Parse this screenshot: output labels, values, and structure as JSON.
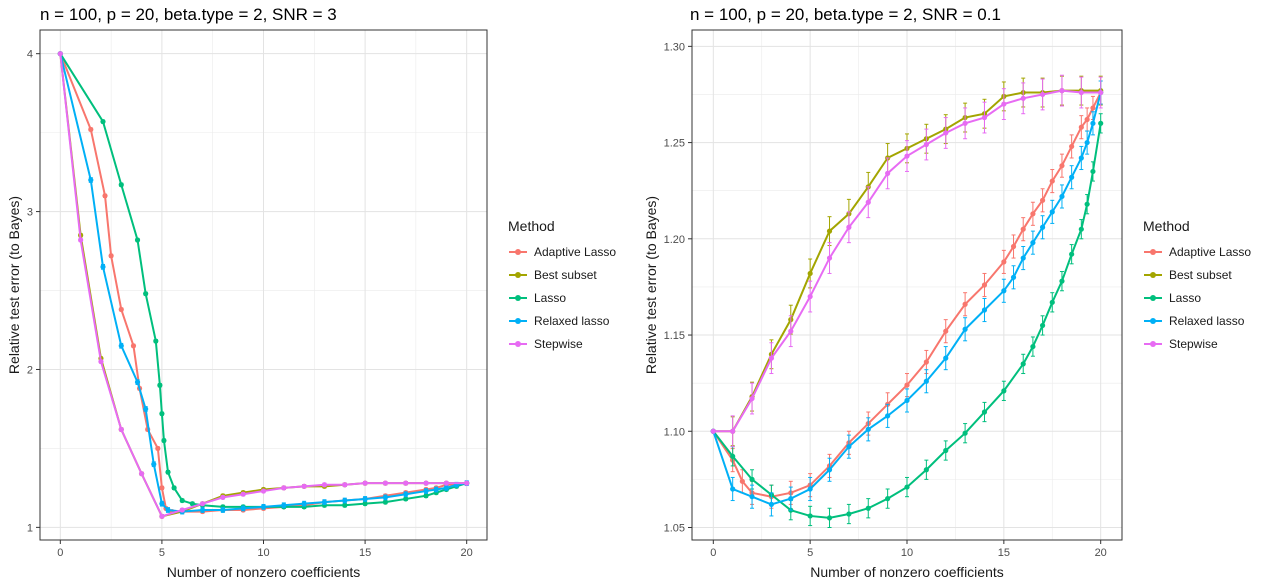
{
  "legend": {
    "title": "Method",
    "items": [
      {
        "label": "Adaptive Lasso",
        "color": "#F8766D"
      },
      {
        "label": "Best subset",
        "color": "#A3A500"
      },
      {
        "label": "Lasso",
        "color": "#00BF7D"
      },
      {
        "label": "Relaxed lasso",
        "color": "#00B0F6"
      },
      {
        "label": "Stepwise",
        "color": "#E76BF3"
      }
    ]
  },
  "chart_data": [
    {
      "type": "line",
      "title": "n = 100, p = 20, beta.type = 2, SNR = 3",
      "xlabel": "Number of nonzero coefficients",
      "ylabel": "Relative test error (to Bayes)",
      "xlim": [
        -1,
        21
      ],
      "ylim": [
        0.92,
        4.15
      ],
      "xticks": [
        0,
        5,
        10,
        15,
        20
      ],
      "xtick_labels": [
        "0",
        "5",
        "10",
        "15",
        "20"
      ],
      "yticks": [
        1,
        2,
        3,
        4
      ],
      "ytick_labels": [
        "1",
        "2",
        "3",
        "4"
      ],
      "grid": true,
      "series": [
        {
          "name": "Adaptive Lasso",
          "color": "#F8766D",
          "points": [
            [
              0,
              4
            ],
            [
              1.5,
              3.52
            ],
            [
              2.2,
              3.1
            ],
            [
              2.5,
              2.72
            ],
            [
              3,
              2.38
            ],
            [
              3.6,
              2.15
            ],
            [
              3.9,
              1.88
            ],
            [
              4.3,
              1.62
            ],
            [
              4.8,
              1.5
            ],
            [
              5,
              1.25
            ],
            [
              5.2,
              1.12
            ],
            [
              5.5,
              1.1
            ],
            [
              6,
              1.1
            ],
            [
              7,
              1.1
            ],
            [
              8,
              1.11
            ],
            [
              9,
              1.11
            ],
            [
              10,
              1.12
            ],
            [
              11,
              1.13
            ],
            [
              12,
              1.14
            ],
            [
              13,
              1.16
            ],
            [
              14,
              1.17
            ],
            [
              15,
              1.18
            ],
            [
              16,
              1.2
            ],
            [
              17,
              1.22
            ],
            [
              18,
              1.24
            ],
            [
              18.5,
              1.25
            ],
            [
              19,
              1.27
            ],
            [
              19.5,
              1.27
            ],
            [
              20,
              1.28
            ]
          ],
          "err": 0.02
        },
        {
          "name": "Best subset",
          "color": "#A3A500",
          "points": [
            [
              0,
              4
            ],
            [
              1,
              2.85
            ],
            [
              2,
              2.07
            ],
            [
              3,
              1.62
            ],
            [
              4,
              1.34
            ],
            [
              5,
              1.07
            ],
            [
              6,
              1.1
            ],
            [
              7,
              1.15
            ],
            [
              8,
              1.2
            ],
            [
              9,
              1.22
            ],
            [
              10,
              1.24
            ],
            [
              11,
              1.25
            ],
            [
              12,
              1.26
            ],
            [
              13,
              1.26
            ],
            [
              14,
              1.27
            ],
            [
              15,
              1.28
            ],
            [
              16,
              1.28
            ],
            [
              17,
              1.28
            ],
            [
              18,
              1.28
            ],
            [
              19,
              1.28
            ],
            [
              20,
              1.28
            ]
          ],
          "err": 0.02
        },
        {
          "name": "Lasso",
          "color": "#00BF7D",
          "points": [
            [
              0,
              4
            ],
            [
              2.1,
              3.57
            ],
            [
              3,
              3.17
            ],
            [
              3.8,
              2.82
            ],
            [
              4.2,
              2.48
            ],
            [
              4.7,
              2.18
            ],
            [
              4.9,
              1.9
            ],
            [
              5,
              1.72
            ],
            [
              5.1,
              1.55
            ],
            [
              5.3,
              1.35
            ],
            [
              5.6,
              1.25
            ],
            [
              6,
              1.17
            ],
            [
              6.5,
              1.15
            ],
            [
              7,
              1.14
            ],
            [
              8,
              1.13
            ],
            [
              9,
              1.13
            ],
            [
              10,
              1.13
            ],
            [
              11,
              1.13
            ],
            [
              12,
              1.13
            ],
            [
              13,
              1.14
            ],
            [
              14,
              1.14
            ],
            [
              15,
              1.15
            ],
            [
              16,
              1.16
            ],
            [
              17,
              1.18
            ],
            [
              18,
              1.2
            ],
            [
              18.5,
              1.22
            ],
            [
              19,
              1.24
            ],
            [
              19.5,
              1.26
            ],
            [
              20,
              1.28
            ]
          ],
          "err": 0.02
        },
        {
          "name": "Relaxed lasso",
          "color": "#00B0F6",
          "points": [
            [
              0,
              4
            ],
            [
              1.5,
              3.2
            ],
            [
              2.1,
              2.65
            ],
            [
              3,
              2.15
            ],
            [
              3.8,
              1.92
            ],
            [
              4.2,
              1.75
            ],
            [
              4.6,
              1.4
            ],
            [
              5,
              1.15
            ],
            [
              5.3,
              1.11
            ],
            [
              6,
              1.1
            ],
            [
              7,
              1.11
            ],
            [
              8,
              1.11
            ],
            [
              9,
              1.12
            ],
            [
              10,
              1.13
            ],
            [
              11,
              1.14
            ],
            [
              12,
              1.15
            ],
            [
              13,
              1.16
            ],
            [
              14,
              1.17
            ],
            [
              15,
              1.18
            ],
            [
              16,
              1.19
            ],
            [
              17,
              1.21
            ],
            [
              18,
              1.23
            ],
            [
              18.5,
              1.24
            ],
            [
              19,
              1.25
            ],
            [
              19.5,
              1.27
            ],
            [
              20,
              1.28
            ]
          ],
          "err": 0.03
        },
        {
          "name": "Stepwise",
          "color": "#E76BF3",
          "points": [
            [
              0,
              4
            ],
            [
              1,
              2.82
            ],
            [
              2,
              2.05
            ],
            [
              3,
              1.62
            ],
            [
              4,
              1.34
            ],
            [
              5,
              1.07
            ],
            [
              6,
              1.11
            ],
            [
              7,
              1.15
            ],
            [
              8,
              1.19
            ],
            [
              9,
              1.21
            ],
            [
              10,
              1.23
            ],
            [
              11,
              1.25
            ],
            [
              12,
              1.26
            ],
            [
              13,
              1.27
            ],
            [
              14,
              1.27
            ],
            [
              15,
              1.28
            ],
            [
              16,
              1.28
            ],
            [
              17,
              1.28
            ],
            [
              18,
              1.28
            ],
            [
              19,
              1.28
            ],
            [
              20,
              1.28
            ]
          ],
          "err": 0.02
        }
      ]
    },
    {
      "type": "line",
      "title": "n = 100, p = 20, beta.type = 2, SNR = 0.1",
      "xlabel": "Number of nonzero coefficients",
      "ylabel": "Relative test error (to Bayes)",
      "xlim": [
        -1.1,
        21.1
      ],
      "ylim": [
        1.0435,
        1.3085
      ],
      "xticks": [
        0,
        5,
        10,
        15,
        20
      ],
      "xtick_labels": [
        "0",
        "5",
        "10",
        "15",
        "20"
      ],
      "yticks": [
        1.05,
        1.1,
        1.15,
        1.2,
        1.25,
        1.3
      ],
      "ytick_labels": [
        "1.05",
        "1.10",
        "1.15",
        "1.20",
        "1.25",
        "1.30"
      ],
      "grid": true,
      "series": [
        {
          "name": "Adaptive Lasso",
          "color": "#F8766D",
          "points": [
            [
              0,
              1.1
            ],
            [
              1,
              1.085
            ],
            [
              1.5,
              1.074
            ],
            [
              2,
              1.068
            ],
            [
              3,
              1.066
            ],
            [
              4,
              1.068
            ],
            [
              5,
              1.072
            ],
            [
              6,
              1.082
            ],
            [
              7,
              1.094
            ],
            [
              8,
              1.104
            ],
            [
              9,
              1.114
            ],
            [
              10,
              1.124
            ],
            [
              11,
              1.136
            ],
            [
              12,
              1.152
            ],
            [
              13,
              1.166
            ],
            [
              14,
              1.176
            ],
            [
              15,
              1.188
            ],
            [
              15.5,
              1.196
            ],
            [
              16,
              1.205
            ],
            [
              16.5,
              1.213
            ],
            [
              17,
              1.22
            ],
            [
              17.5,
              1.23
            ],
            [
              18,
              1.238
            ],
            [
              18.5,
              1.248
            ],
            [
              19,
              1.258
            ],
            [
              19.3,
              1.262
            ],
            [
              19.6,
              1.268
            ],
            [
              20,
              1.276
            ]
          ],
          "err": 0.012
        },
        {
          "name": "Best subset",
          "color": "#A3A500",
          "points": [
            [
              0,
              1.1
            ],
            [
              1,
              1.1
            ],
            [
              2,
              1.118
            ],
            [
              3,
              1.14
            ],
            [
              4,
              1.158
            ],
            [
              5,
              1.182
            ],
            [
              6,
              1.204
            ],
            [
              7,
              1.213
            ],
            [
              8,
              1.227
            ],
            [
              9,
              1.242
            ],
            [
              10,
              1.247
            ],
            [
              11,
              1.252
            ],
            [
              12,
              1.257
            ],
            [
              13,
              1.263
            ],
            [
              14,
              1.265
            ],
            [
              15,
              1.274
            ],
            [
              16,
              1.276
            ],
            [
              17,
              1.276
            ],
            [
              18,
              1.277
            ],
            [
              19,
              1.277
            ],
            [
              20,
              1.277
            ]
          ],
          "err": 0.015
        },
        {
          "name": "Lasso",
          "color": "#00BF7D",
          "points": [
            [
              0,
              1.1
            ],
            [
              1,
              1.087
            ],
            [
              2,
              1.075
            ],
            [
              3,
              1.067
            ],
            [
              4,
              1.059
            ],
            [
              5,
              1.056
            ],
            [
              6,
              1.055
            ],
            [
              7,
              1.057
            ],
            [
              8,
              1.06
            ],
            [
              9,
              1.065
            ],
            [
              10,
              1.071
            ],
            [
              11,
              1.08
            ],
            [
              12,
              1.09
            ],
            [
              13,
              1.099
            ],
            [
              14,
              1.11
            ],
            [
              15,
              1.121
            ],
            [
              16,
              1.135
            ],
            [
              16.5,
              1.144
            ],
            [
              17,
              1.155
            ],
            [
              17.5,
              1.167
            ],
            [
              18,
              1.178
            ],
            [
              18.5,
              1.192
            ],
            [
              19,
              1.205
            ],
            [
              19.3,
              1.218
            ],
            [
              19.6,
              1.235
            ],
            [
              20,
              1.26
            ]
          ],
          "err": 0.01
        },
        {
          "name": "Relaxed lasso",
          "color": "#00B0F6",
          "points": [
            [
              0,
              1.1
            ],
            [
              1,
              1.07
            ],
            [
              2,
              1.066
            ],
            [
              3,
              1.062
            ],
            [
              4,
              1.065
            ],
            [
              5,
              1.07
            ],
            [
              6,
              1.08
            ],
            [
              7,
              1.092
            ],
            [
              8,
              1.101
            ],
            [
              9,
              1.108
            ],
            [
              10,
              1.116
            ],
            [
              11,
              1.126
            ],
            [
              12,
              1.138
            ],
            [
              13,
              1.153
            ],
            [
              14,
              1.163
            ],
            [
              15,
              1.173
            ],
            [
              15.5,
              1.18
            ],
            [
              16,
              1.19
            ],
            [
              16.5,
              1.198
            ],
            [
              17,
              1.206
            ],
            [
              17.5,
              1.214
            ],
            [
              18,
              1.222
            ],
            [
              18.5,
              1.232
            ],
            [
              19,
              1.242
            ],
            [
              19.3,
              1.25
            ],
            [
              19.6,
              1.26
            ],
            [
              20,
              1.276
            ]
          ],
          "err": 0.012
        },
        {
          "name": "Stepwise",
          "color": "#E76BF3",
          "points": [
            [
              0,
              1.1
            ],
            [
              1,
              1.1
            ],
            [
              2,
              1.117
            ],
            [
              3,
              1.138
            ],
            [
              4,
              1.152
            ],
            [
              5,
              1.17
            ],
            [
              6,
              1.19
            ],
            [
              7,
              1.206
            ],
            [
              8,
              1.219
            ],
            [
              9,
              1.234
            ],
            [
              10,
              1.243
            ],
            [
              11,
              1.249
            ],
            [
              12,
              1.255
            ],
            [
              13,
              1.26
            ],
            [
              14,
              1.263
            ],
            [
              15,
              1.27
            ],
            [
              16,
              1.273
            ],
            [
              17,
              1.275
            ],
            [
              18,
              1.277
            ],
            [
              19,
              1.276
            ],
            [
              20,
              1.276
            ]
          ],
          "err": 0.016
        }
      ]
    }
  ]
}
